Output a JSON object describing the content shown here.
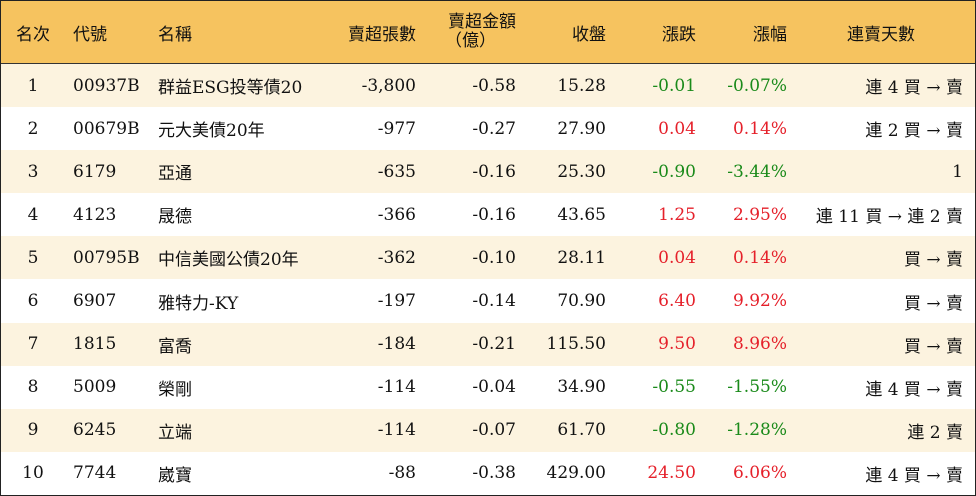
{
  "header": {
    "rank": "名次",
    "code": "代號",
    "name": "名稱",
    "net_sell_sheets": "賣超張數",
    "net_sell_amount_line1": "賣超金額",
    "net_sell_amount_line2": "（億）",
    "close": "收盤",
    "change": "漲跌",
    "change_pct": "漲幅",
    "streak": "連賣天數"
  },
  "colors": {
    "header_bg": "#f6c35f",
    "odd_row_bg": "#fcf3df",
    "even_row_bg": "#ffffff",
    "up": "#e5202a",
    "down": "#1a8a1a"
  },
  "rows": [
    {
      "rank": "1",
      "code": "00937B",
      "name": "群益ESG投等債20",
      "sheets": "-3,800",
      "amount": "-0.58",
      "close": "15.28",
      "change": "-0.01",
      "pct": "-0.07%",
      "direction": "down",
      "streak": "連 4 買 → 賣"
    },
    {
      "rank": "2",
      "code": "00679B",
      "name": "元大美債20年",
      "sheets": "-977",
      "amount": "-0.27",
      "close": "27.90",
      "change": "0.04",
      "pct": "0.14%",
      "direction": "up",
      "streak": "連 2 買 → 賣"
    },
    {
      "rank": "3",
      "code": "6179",
      "name": "亞通",
      "sheets": "-635",
      "amount": "-0.16",
      "close": "25.30",
      "change": "-0.90",
      "pct": "-3.44%",
      "direction": "down",
      "streak": "1"
    },
    {
      "rank": "4",
      "code": "4123",
      "name": "晟德",
      "sheets": "-366",
      "amount": "-0.16",
      "close": "43.65",
      "change": "1.25",
      "pct": "2.95%",
      "direction": "up",
      "streak": "連 11 買 → 連 2 賣"
    },
    {
      "rank": "5",
      "code": "00795B",
      "name": "中信美國公債20年",
      "sheets": "-362",
      "amount": "-0.10",
      "close": "28.11",
      "change": "0.04",
      "pct": "0.14%",
      "direction": "up",
      "streak": "買 → 賣"
    },
    {
      "rank": "6",
      "code": "6907",
      "name": "雅特力-KY",
      "sheets": "-197",
      "amount": "-0.14",
      "close": "70.90",
      "change": "6.40",
      "pct": "9.92%",
      "direction": "up",
      "streak": "買 → 賣"
    },
    {
      "rank": "7",
      "code": "1815",
      "name": "富喬",
      "sheets": "-184",
      "amount": "-0.21",
      "close": "115.50",
      "change": "9.50",
      "pct": "8.96%",
      "direction": "up",
      "streak": "買 → 賣"
    },
    {
      "rank": "8",
      "code": "5009",
      "name": "榮剛",
      "sheets": "-114",
      "amount": "-0.04",
      "close": "34.90",
      "change": "-0.55",
      "pct": "-1.55%",
      "direction": "down",
      "streak": "連 4 買 → 賣"
    },
    {
      "rank": "9",
      "code": "6245",
      "name": "立端",
      "sheets": "-114",
      "amount": "-0.07",
      "close": "61.70",
      "change": "-0.80",
      "pct": "-1.28%",
      "direction": "down",
      "streak": "連 2 賣"
    },
    {
      "rank": "10",
      "code": "7744",
      "name": "崴寶",
      "sheets": "-88",
      "amount": "-0.38",
      "close": "429.00",
      "change": "24.50",
      "pct": "6.06%",
      "direction": "up",
      "streak": "連 4 買 → 賣"
    }
  ]
}
